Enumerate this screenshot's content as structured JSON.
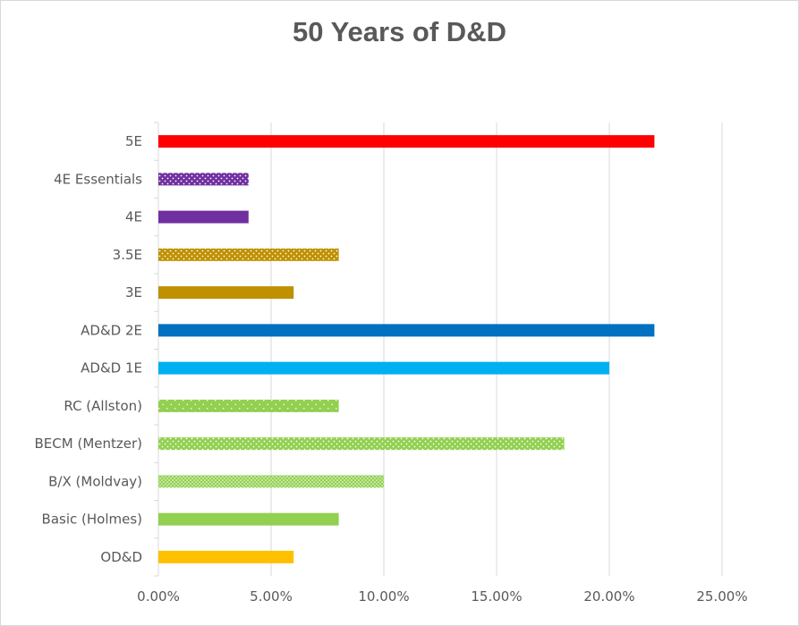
{
  "chart_data": {
    "type": "bar",
    "orientation": "horizontal",
    "title": "50 Years of D&D",
    "xlabel": "",
    "ylabel": "",
    "xlim": [
      0,
      0.25
    ],
    "x_ticks": [
      0,
      0.05,
      0.1,
      0.15,
      0.2,
      0.25
    ],
    "x_tick_labels": [
      "0.00%",
      "5.00%",
      "10.00%",
      "15.00%",
      "20.00%",
      "25.00%"
    ],
    "grid": "vertical",
    "legend": "none",
    "categories": [
      "5E",
      "4E Essentials",
      "4E",
      "3.5E",
      "3E",
      "AD&D 2E",
      "AD&D 1E",
      "RC (Allston)",
      "BECM (Mentzer)",
      "B/X (Moldvay)",
      "Basic (Holmes)",
      "OD&D"
    ],
    "values": [
      0.22,
      0.04,
      0.04,
      0.08,
      0.06,
      0.22,
      0.2,
      0.08,
      0.18,
      0.1,
      0.08,
      0.06
    ],
    "bar_styles": [
      {
        "color": "#ff0000",
        "pattern": "solid"
      },
      {
        "color": "#7030a0",
        "pattern": "dots"
      },
      {
        "color": "#7030a0",
        "pattern": "solid"
      },
      {
        "color": "#bf9000",
        "pattern": "dots"
      },
      {
        "color": "#bf9000",
        "pattern": "solid"
      },
      {
        "color": "#0070c0",
        "pattern": "solid"
      },
      {
        "color": "#00b0f0",
        "pattern": "solid"
      },
      {
        "color": "#92d050",
        "pattern": "sparse-dots"
      },
      {
        "color": "#92d050",
        "pattern": "dots"
      },
      {
        "color": "#92d050",
        "pattern": "dense-dots"
      },
      {
        "color": "#92d050",
        "pattern": "solid"
      },
      {
        "color": "#ffc000",
        "pattern": "solid"
      }
    ]
  }
}
